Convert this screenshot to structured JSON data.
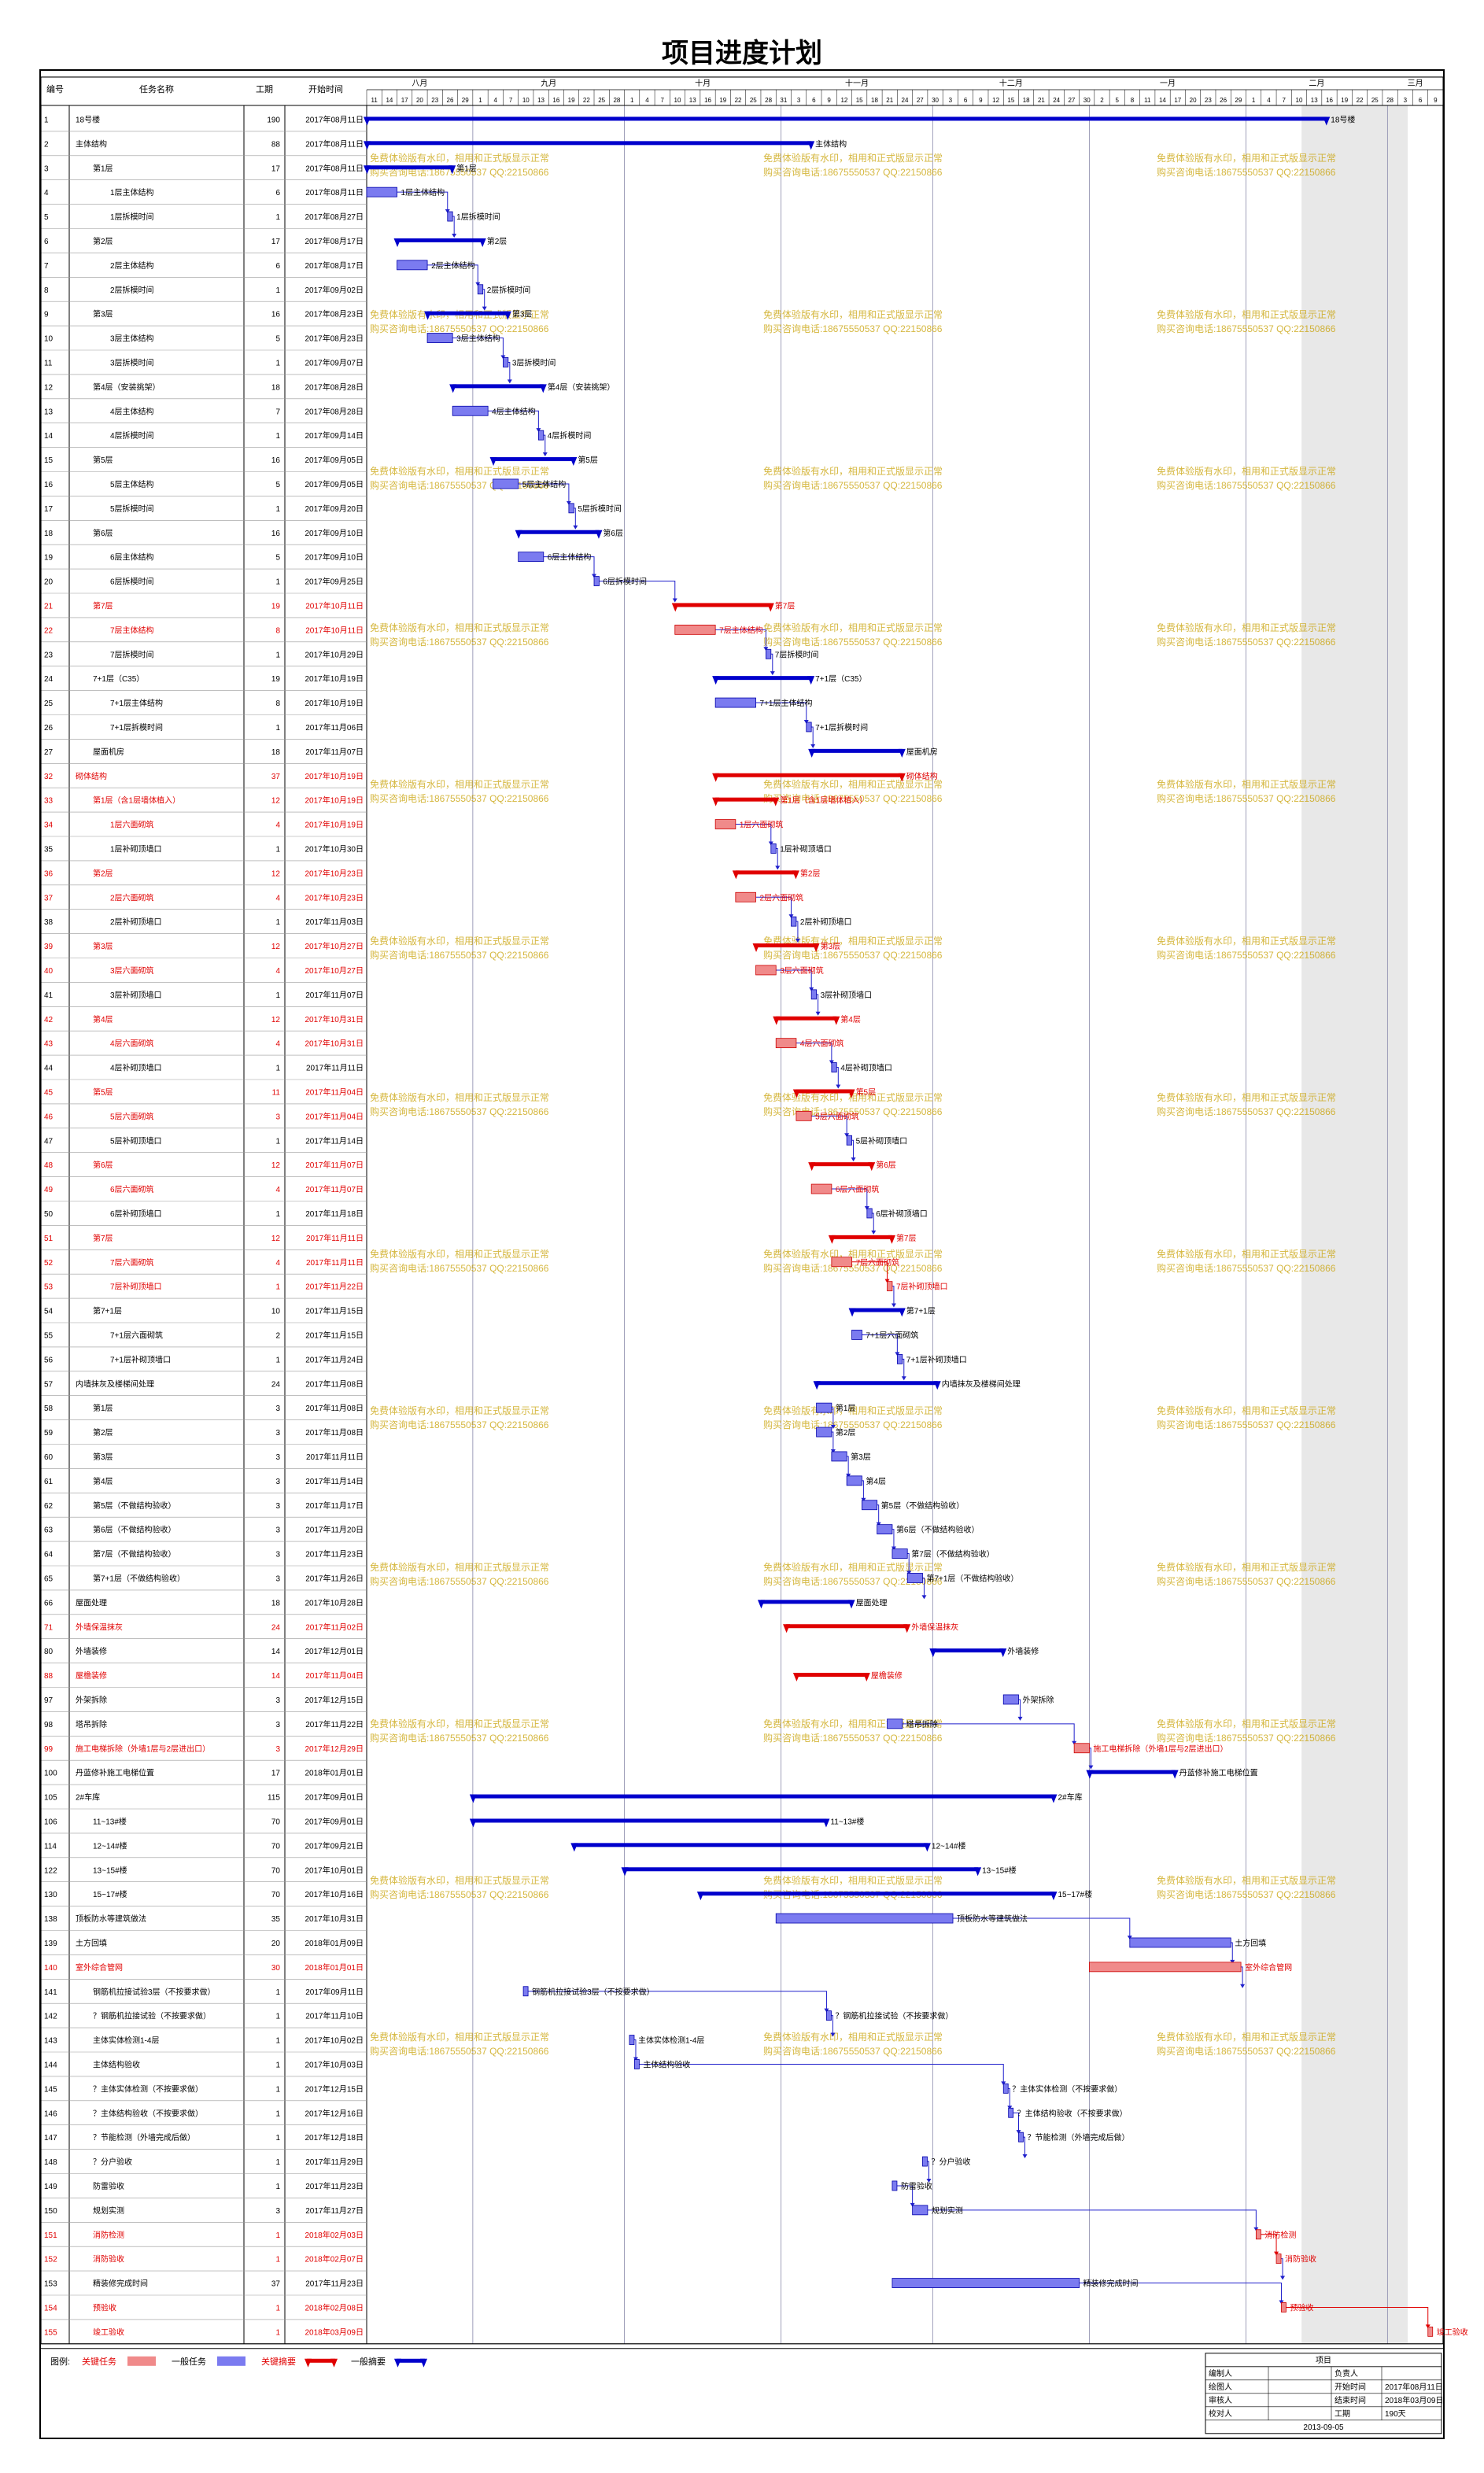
{
  "title": "项目进度计划",
  "columns": {
    "id": "编号",
    "name": "任务名称",
    "dur": "工期",
    "start": "开始时间"
  },
  "months": [
    {
      "label": "八月",
      "days": [
        11,
        14,
        17,
        20,
        23,
        26,
        29
      ]
    },
    {
      "label": "九月",
      "days": [
        1,
        4,
        7,
        10,
        13,
        16,
        19,
        22,
        25,
        28
      ]
    },
    {
      "label": "十月",
      "days": [
        1,
        4,
        7,
        10,
        13,
        16,
        19,
        22,
        25,
        28,
        31
      ]
    },
    {
      "label": "十一月",
      "days": [
        3,
        6,
        9,
        12,
        15,
        18,
        21,
        24,
        27,
        30
      ]
    },
    {
      "label": "十二月",
      "days": [
        3,
        6,
        9,
        12,
        15,
        18,
        21,
        24,
        27,
        30
      ]
    },
    {
      "label": "一月",
      "days": [
        2,
        5,
        8,
        11,
        14,
        17,
        20,
        23,
        26,
        29
      ]
    },
    {
      "label": "二月",
      "days": [
        1,
        4,
        7,
        10,
        13,
        16,
        19,
        22,
        25,
        28
      ]
    },
    {
      "label": "三月",
      "days": [
        3,
        6,
        9
      ]
    }
  ],
  "watermark": [
    "免费体验版有水印，相用和正式版显示正常",
    "购买咨询电话:18675550537 QQ:22150866"
  ],
  "chart_data": {
    "type": "gantt",
    "timeline_start": "2017-08-11",
    "timeline_end": "2018-03-11",
    "tasks": [
      {
        "id": "1",
        "name": "18号楼",
        "dur": 190,
        "start": "2017-08-11",
        "kind": "summary",
        "crit": false,
        "level": 0
      },
      {
        "id": "2",
        "name": "主体结构",
        "dur": 88,
        "start": "2017-08-11",
        "kind": "summary",
        "crit": false,
        "level": 0
      },
      {
        "id": "3",
        "name": "第1层",
        "dur": 17,
        "start": "2017-08-11",
        "kind": "summary",
        "crit": false,
        "level": 1
      },
      {
        "id": "4",
        "name": "1层主体结构",
        "dur": 6,
        "start": "2017-08-11",
        "kind": "task",
        "crit": false,
        "level": 2
      },
      {
        "id": "5",
        "name": "1层拆模时间",
        "dur": 1,
        "start": "2017-08-27",
        "kind": "task",
        "crit": false,
        "level": 2
      },
      {
        "id": "6",
        "name": "第2层",
        "dur": 17,
        "start": "2017-08-17",
        "kind": "summary",
        "crit": false,
        "level": 1
      },
      {
        "id": "7",
        "name": "2层主体结构",
        "dur": 6,
        "start": "2017-08-17",
        "kind": "task",
        "crit": false,
        "level": 2
      },
      {
        "id": "8",
        "name": "2层拆模时间",
        "dur": 1,
        "start": "2017-09-02",
        "kind": "task",
        "crit": false,
        "level": 2
      },
      {
        "id": "9",
        "name": "第3层",
        "dur": 16,
        "start": "2017-08-23",
        "kind": "summary",
        "crit": false,
        "level": 1
      },
      {
        "id": "10",
        "name": "3层主体结构",
        "dur": 5,
        "start": "2017-08-23",
        "kind": "task",
        "crit": false,
        "level": 2
      },
      {
        "id": "11",
        "name": "3层拆模时间",
        "dur": 1,
        "start": "2017-09-07",
        "kind": "task",
        "crit": false,
        "level": 2
      },
      {
        "id": "12",
        "name": "第4层（安装挑架）",
        "dur": 18,
        "start": "2017-08-28",
        "kind": "summary",
        "crit": false,
        "level": 1
      },
      {
        "id": "13",
        "name": "4层主体结构",
        "dur": 7,
        "start": "2017-08-28",
        "kind": "task",
        "crit": false,
        "level": 2
      },
      {
        "id": "14",
        "name": "4层拆模时间",
        "dur": 1,
        "start": "2017-09-14",
        "kind": "task",
        "crit": false,
        "level": 2
      },
      {
        "id": "15",
        "name": "第5层",
        "dur": 16,
        "start": "2017-09-05",
        "kind": "summary",
        "crit": false,
        "level": 1
      },
      {
        "id": "16",
        "name": "5层主体结构",
        "dur": 5,
        "start": "2017-09-05",
        "kind": "task",
        "crit": false,
        "level": 2
      },
      {
        "id": "17",
        "name": "5层拆模时间",
        "dur": 1,
        "start": "2017-09-20",
        "kind": "task",
        "crit": false,
        "level": 2
      },
      {
        "id": "18",
        "name": "第6层",
        "dur": 16,
        "start": "2017-09-10",
        "kind": "summary",
        "crit": false,
        "level": 1
      },
      {
        "id": "19",
        "name": "6层主体结构",
        "dur": 5,
        "start": "2017-09-10",
        "kind": "task",
        "crit": false,
        "level": 2
      },
      {
        "id": "20",
        "name": "6层拆模时间",
        "dur": 1,
        "start": "2017-09-25",
        "kind": "task",
        "crit": false,
        "level": 2
      },
      {
        "id": "21",
        "name": "第7层",
        "dur": 19,
        "start": "2017-10-11",
        "kind": "summary",
        "crit": true,
        "level": 1
      },
      {
        "id": "22",
        "name": "7层主体结构",
        "dur": 8,
        "start": "2017-10-11",
        "kind": "task",
        "crit": true,
        "level": 2
      },
      {
        "id": "23",
        "name": "7层拆模时间",
        "dur": 1,
        "start": "2017-10-29",
        "kind": "task",
        "crit": false,
        "level": 2
      },
      {
        "id": "24",
        "name": "7+1层（C35）",
        "dur": 19,
        "start": "2017-10-19",
        "kind": "summary",
        "crit": false,
        "level": 1
      },
      {
        "id": "25",
        "name": "7+1层主体结构",
        "dur": 8,
        "start": "2017-10-19",
        "kind": "task",
        "crit": false,
        "level": 2
      },
      {
        "id": "26",
        "name": "7+1层拆模时间",
        "dur": 1,
        "start": "2017-11-06",
        "kind": "task",
        "crit": false,
        "level": 2
      },
      {
        "id": "27",
        "name": "屋面机房",
        "dur": 18,
        "start": "2017-11-07",
        "kind": "summary",
        "crit": false,
        "level": 1
      },
      {
        "id": "32",
        "name": "砌体结构",
        "dur": 37,
        "start": "2017-10-19",
        "kind": "summary",
        "crit": true,
        "level": 0
      },
      {
        "id": "33",
        "name": "第1层（含1层墙体植入）",
        "dur": 12,
        "start": "2017-10-19",
        "kind": "summary",
        "crit": true,
        "level": 1
      },
      {
        "id": "34",
        "name": "1层六面砌筑",
        "dur": 4,
        "start": "2017-10-19",
        "kind": "task",
        "crit": true,
        "level": 2
      },
      {
        "id": "35",
        "name": "1层补砌顶墙口",
        "dur": 1,
        "start": "2017-10-30",
        "kind": "task",
        "crit": false,
        "level": 2
      },
      {
        "id": "36",
        "name": "第2层",
        "dur": 12,
        "start": "2017-10-23",
        "kind": "summary",
        "crit": true,
        "level": 1
      },
      {
        "id": "37",
        "name": "2层六面砌筑",
        "dur": 4,
        "start": "2017-10-23",
        "kind": "task",
        "crit": true,
        "level": 2
      },
      {
        "id": "38",
        "name": "2层补砌顶墙口",
        "dur": 1,
        "start": "2017-11-03",
        "kind": "task",
        "crit": false,
        "level": 2
      },
      {
        "id": "39",
        "name": "第3层",
        "dur": 12,
        "start": "2017-10-27",
        "kind": "summary",
        "crit": true,
        "level": 1
      },
      {
        "id": "40",
        "name": "3层六面砌筑",
        "dur": 4,
        "start": "2017-10-27",
        "kind": "task",
        "crit": true,
        "level": 2
      },
      {
        "id": "41",
        "name": "3层补砌顶墙口",
        "dur": 1,
        "start": "2017-11-07",
        "kind": "task",
        "crit": false,
        "level": 2
      },
      {
        "id": "42",
        "name": "第4层",
        "dur": 12,
        "start": "2017-10-31",
        "kind": "summary",
        "crit": true,
        "level": 1
      },
      {
        "id": "43",
        "name": "4层六面砌筑",
        "dur": 4,
        "start": "2017-10-31",
        "kind": "task",
        "crit": true,
        "level": 2
      },
      {
        "id": "44",
        "name": "4层补砌顶墙口",
        "dur": 1,
        "start": "2017-11-11",
        "kind": "task",
        "crit": false,
        "level": 2
      },
      {
        "id": "45",
        "name": "第5层",
        "dur": 11,
        "start": "2017-11-04",
        "kind": "summary",
        "crit": true,
        "level": 1
      },
      {
        "id": "46",
        "name": "5层六面砌筑",
        "dur": 3,
        "start": "2017-11-04",
        "kind": "task",
        "crit": true,
        "level": 2
      },
      {
        "id": "47",
        "name": "5层补砌顶墙口",
        "dur": 1,
        "start": "2017-11-14",
        "kind": "task",
        "crit": false,
        "level": 2
      },
      {
        "id": "48",
        "name": "第6层",
        "dur": 12,
        "start": "2017-11-07",
        "kind": "summary",
        "crit": true,
        "level": 1
      },
      {
        "id": "49",
        "name": "6层六面砌筑",
        "dur": 4,
        "start": "2017-11-07",
        "kind": "task",
        "crit": true,
        "level": 2
      },
      {
        "id": "50",
        "name": "6层补砌顶墙口",
        "dur": 1,
        "start": "2017-11-18",
        "kind": "task",
        "crit": false,
        "level": 2
      },
      {
        "id": "51",
        "name": "第7层",
        "dur": 12,
        "start": "2017-11-11",
        "kind": "summary",
        "crit": true,
        "level": 1
      },
      {
        "id": "52",
        "name": "7层六面砌筑",
        "dur": 4,
        "start": "2017-11-11",
        "kind": "task",
        "crit": true,
        "level": 2
      },
      {
        "id": "53",
        "name": "7层补砌顶墙口",
        "dur": 1,
        "start": "2017-11-22",
        "kind": "task",
        "crit": true,
        "level": 2
      },
      {
        "id": "54",
        "name": "第7+1层",
        "dur": 10,
        "start": "2017-11-15",
        "kind": "summary",
        "crit": false,
        "level": 1
      },
      {
        "id": "55",
        "name": "7+1层六面砌筑",
        "dur": 2,
        "start": "2017-11-15",
        "kind": "task",
        "crit": false,
        "level": 2
      },
      {
        "id": "56",
        "name": "7+1层补砌顶墙口",
        "dur": 1,
        "start": "2017-11-24",
        "kind": "task",
        "crit": false,
        "level": 2
      },
      {
        "id": "57",
        "name": "内墙抹灰及楼梯间处理",
        "dur": 24,
        "start": "2017-11-08",
        "kind": "summary",
        "crit": false,
        "level": 0
      },
      {
        "id": "58",
        "name": "第1层",
        "dur": 3,
        "start": "2017-11-08",
        "kind": "task",
        "crit": false,
        "level": 1
      },
      {
        "id": "59",
        "name": "第2层",
        "dur": 3,
        "start": "2017-11-08",
        "kind": "task",
        "crit": false,
        "level": 1
      },
      {
        "id": "60",
        "name": "第3层",
        "dur": 3,
        "start": "2017-11-11",
        "kind": "task",
        "crit": false,
        "level": 1
      },
      {
        "id": "61",
        "name": "第4层",
        "dur": 3,
        "start": "2017-11-14",
        "kind": "task",
        "crit": false,
        "level": 1
      },
      {
        "id": "62",
        "name": "第5层（不做结构验收）",
        "dur": 3,
        "start": "2017-11-17",
        "kind": "task",
        "crit": false,
        "level": 1
      },
      {
        "id": "63",
        "name": "第6层（不做结构验收）",
        "dur": 3,
        "start": "2017-11-20",
        "kind": "task",
        "crit": false,
        "level": 1
      },
      {
        "id": "64",
        "name": "第7层（不做结构验收）",
        "dur": 3,
        "start": "2017-11-23",
        "kind": "task",
        "crit": false,
        "level": 1
      },
      {
        "id": "65",
        "name": "第7+1层（不做结构验收）",
        "dur": 3,
        "start": "2017-11-26",
        "kind": "task",
        "crit": false,
        "level": 1
      },
      {
        "id": "66",
        "name": "屋面处理",
        "dur": 18,
        "start": "2017-10-28",
        "kind": "summary",
        "crit": false,
        "level": 0
      },
      {
        "id": "71",
        "name": "外墙保温抹灰",
        "dur": 24,
        "start": "2017-11-02",
        "kind": "summary",
        "crit": true,
        "level": 0
      },
      {
        "id": "80",
        "name": "外墙装修",
        "dur": 14,
        "start": "2017-12-01",
        "kind": "summary",
        "crit": false,
        "level": 0
      },
      {
        "id": "88",
        "name": "屋檐装修",
        "dur": 14,
        "start": "2017-11-04",
        "kind": "summary",
        "crit": true,
        "level": 0
      },
      {
        "id": "97",
        "name": "外架拆除",
        "dur": 3,
        "start": "2017-12-15",
        "kind": "task",
        "crit": false,
        "level": 0
      },
      {
        "id": "98",
        "name": "塔吊拆除",
        "dur": 3,
        "start": "2017-11-22",
        "kind": "task",
        "crit": false,
        "level": 0
      },
      {
        "id": "99",
        "name": "施工电梯拆除（外墙1层与2层进出口）",
        "dur": 3,
        "start": "2017-12-29",
        "kind": "task",
        "crit": true,
        "level": 0
      },
      {
        "id": "100",
        "name": "丹蓝修补施工电梯位置",
        "dur": 17,
        "start": "2018-01-01",
        "kind": "summary",
        "crit": false,
        "level": 0
      },
      {
        "id": "105",
        "name": "2#车库",
        "dur": 115,
        "start": "2017-09-01",
        "kind": "summary",
        "crit": false,
        "level": 0
      },
      {
        "id": "106",
        "name": "11~13#楼",
        "dur": 70,
        "start": "2017-09-01",
        "kind": "summary",
        "crit": false,
        "level": 1
      },
      {
        "id": "114",
        "name": "12~14#楼",
        "dur": 70,
        "start": "2017-09-21",
        "kind": "summary",
        "crit": false,
        "level": 1
      },
      {
        "id": "122",
        "name": "13~15#楼",
        "dur": 70,
        "start": "2017-10-01",
        "kind": "summary",
        "crit": false,
        "level": 1
      },
      {
        "id": "130",
        "name": "15~17#楼",
        "dur": 70,
        "start": "2017-10-16",
        "kind": "summary",
        "crit": false,
        "level": 1
      },
      {
        "id": "138",
        "name": "顶板防水等建筑做法",
        "dur": 35,
        "start": "2017-10-31",
        "kind": "task",
        "crit": false,
        "level": 0
      },
      {
        "id": "139",
        "name": "土方回填",
        "dur": 20,
        "start": "2018-01-09",
        "kind": "task",
        "crit": false,
        "level": 0
      },
      {
        "id": "140",
        "name": "室外综合管网",
        "dur": 30,
        "start": "2018-01-01",
        "kind": "task",
        "crit": true,
        "level": 0
      },
      {
        "id": "141",
        "name": "钢筋机拉接试验3层（不按要求做）",
        "dur": 1,
        "start": "2017-09-11",
        "kind": "milestone",
        "crit": false,
        "level": 1
      },
      {
        "id": "142",
        "name": "？钢筋机拉接试验（不按要求做）",
        "dur": 1,
        "start": "2017-11-10",
        "kind": "milestone",
        "crit": false,
        "level": 1
      },
      {
        "id": "143",
        "name": "主体实体检测1-4层",
        "dur": 1,
        "start": "2017-10-02",
        "kind": "milestone",
        "crit": false,
        "level": 1
      },
      {
        "id": "144",
        "name": "主体结构验收",
        "dur": 1,
        "start": "2017-10-03",
        "kind": "milestone",
        "crit": false,
        "level": 1
      },
      {
        "id": "145",
        "name": "？主体实体检测（不按要求做）",
        "dur": 1,
        "start": "2017-12-15",
        "kind": "milestone",
        "crit": false,
        "level": 1
      },
      {
        "id": "146",
        "name": "？主体结构验收（不按要求做）",
        "dur": 1,
        "start": "2017-12-16",
        "kind": "milestone",
        "crit": false,
        "level": 1
      },
      {
        "id": "147",
        "name": "？节能检测（外墙完成后做）",
        "dur": 1,
        "start": "2017-12-18",
        "kind": "milestone",
        "crit": false,
        "level": 1
      },
      {
        "id": "148",
        "name": "？分户验收",
        "dur": 1,
        "start": "2017-11-29",
        "kind": "milestone",
        "crit": false,
        "level": 1
      },
      {
        "id": "149",
        "name": "防雷验收",
        "dur": 1,
        "start": "2017-11-23",
        "kind": "milestone",
        "crit": false,
        "level": 1
      },
      {
        "id": "150",
        "name": "规划实测",
        "dur": 3,
        "start": "2017-11-27",
        "kind": "task",
        "crit": false,
        "level": 1
      },
      {
        "id": "151",
        "name": "消防检测",
        "dur": 1,
        "start": "2018-02-03",
        "kind": "milestone",
        "crit": true,
        "level": 1
      },
      {
        "id": "152",
        "name": "消防验收",
        "dur": 1,
        "start": "2018-02-07",
        "kind": "milestone",
        "crit": true,
        "level": 1
      },
      {
        "id": "153",
        "name": "精装修完成时间",
        "dur": 37,
        "start": "2017-11-23",
        "kind": "task",
        "crit": false,
        "level": 1
      },
      {
        "id": "154",
        "name": "预验收",
        "dur": 1,
        "start": "2018-02-08",
        "kind": "milestone",
        "crit": true,
        "level": 1
      },
      {
        "id": "155",
        "name": "竣工验收",
        "dur": 1,
        "start": "2018-03-09",
        "kind": "milestone",
        "crit": true,
        "level": 1
      }
    ],
    "legend": [
      {
        "label": "关键任务",
        "symbol": "crit-task"
      },
      {
        "label": "一般任务",
        "symbol": "task"
      },
      {
        "label": "关键摘要",
        "symbol": "crit-summary"
      },
      {
        "label": "一般摘要",
        "symbol": "summary"
      }
    ],
    "colors": {
      "task": "#7b7bf0",
      "crit_task": "#f08a8a",
      "summary": "#0000cc",
      "crit_summary": "#e00000",
      "link": "#2020cc",
      "weekend": "#e8e8e8",
      "watermark": "#c8a000"
    }
  },
  "legend_label": "图例:",
  "footer": {
    "project_label": "项目",
    "rows": [
      [
        "编制人",
        "",
        "负责人",
        ""
      ],
      [
        "绘图人",
        "",
        "开始时间",
        "2017年08月11日"
      ],
      [
        "审核人",
        "",
        "结束时间",
        "2018年03月09日"
      ],
      [
        "校对人",
        "",
        "工期",
        "190天"
      ]
    ],
    "date": "2013-09-05"
  }
}
